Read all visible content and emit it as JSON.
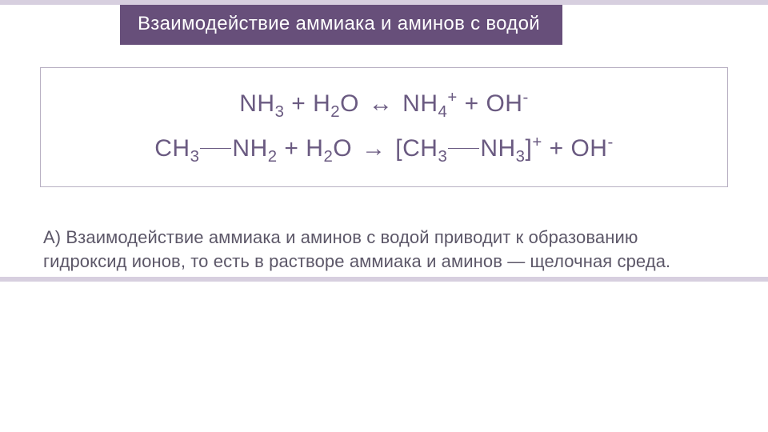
{
  "title": "Взаимодействие аммиака и аминов с водой",
  "colors": {
    "title_bg": "#674f7a",
    "title_text": "#ffffff",
    "stripe": "#d7cfdf",
    "eq_text": "#6a5a81",
    "eq_border": "#b8b0c3",
    "body_text": "#5c5768",
    "page_bg": "#ffffff"
  },
  "typography": {
    "title_fontsize": 24,
    "eq_fontsize": 30,
    "body_fontsize": 22,
    "font_family": "Segoe UI Light"
  },
  "equations": {
    "eq1": {
      "lhs1": "NH",
      "lhs1_sub": "3",
      "plus1": " + H",
      "lhs2_sub": "2",
      "lhs2": "O ",
      "arrow": "↔",
      "rhs1": " NH",
      "rhs1_sub": "4",
      "rhs1_sup": "+",
      "plus2": " + OH",
      "rhs2_sup": "-"
    },
    "eq2": {
      "lhs1": "CH",
      "lhs1_sub": "3",
      "lhs2": "NH",
      "lhs2_sub": "2",
      "plus1": " + H",
      "lhs3_sub": "2",
      "lhs3": "O ",
      "arrow": "→",
      "br_open": " [CH",
      "rhs1_sub": "3",
      "rhs2": "NH",
      "rhs2_sub": "3",
      "br_close": "]",
      "rhs_sup": "+",
      "plus2": " + OH",
      "rhs3_sup": "-"
    }
  },
  "explanation": "А) Взаимодействие аммиака и аминов с водой приводит к образованию гидроксид ионов, то есть в растворе аммиака и аминов — щелочная среда."
}
